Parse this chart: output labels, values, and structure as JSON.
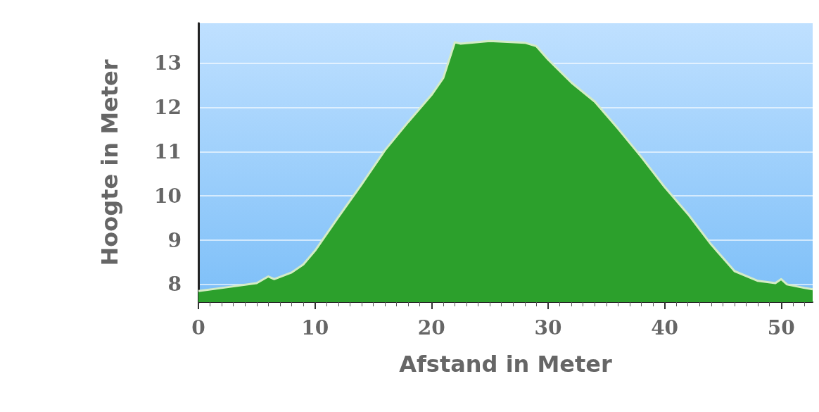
{
  "chart_data": {
    "type": "area",
    "xlabel": "Afstand in Meter",
    "ylabel": "Hoogte in Meter",
    "x": [
      0,
      2,
      5,
      6,
      6.5,
      8,
      9,
      10,
      12,
      14,
      16,
      18,
      20,
      21,
      22,
      22.5,
      25,
      28,
      29,
      30,
      32,
      34,
      36,
      38,
      40,
      42,
      44,
      46,
      48,
      49.5,
      50,
      50.5,
      52,
      52.7
    ],
    "series": [
      {
        "color": "#2ca02c",
        "values": [
          7.85,
          7.92,
          8.03,
          8.18,
          8.12,
          8.27,
          8.45,
          8.76,
          9.52,
          10.26,
          11.03,
          11.67,
          12.28,
          12.66,
          13.47,
          13.44,
          13.5,
          13.46,
          13.38,
          13.08,
          12.56,
          12.13,
          11.52,
          10.88,
          10.2,
          9.59,
          8.9,
          8.3,
          8.08,
          8.03,
          8.12,
          8,
          7.92,
          7.89
        ]
      }
    ],
    "xlim": [
      0,
      52.7
    ],
    "xticks": [
      0,
      10,
      20,
      30,
      40,
      50
    ],
    "ylim": [
      7.6,
      13.9
    ],
    "yticks": [
      8,
      9,
      10,
      11,
      12,
      13
    ],
    "grid": "y",
    "marker": "none"
  }
}
